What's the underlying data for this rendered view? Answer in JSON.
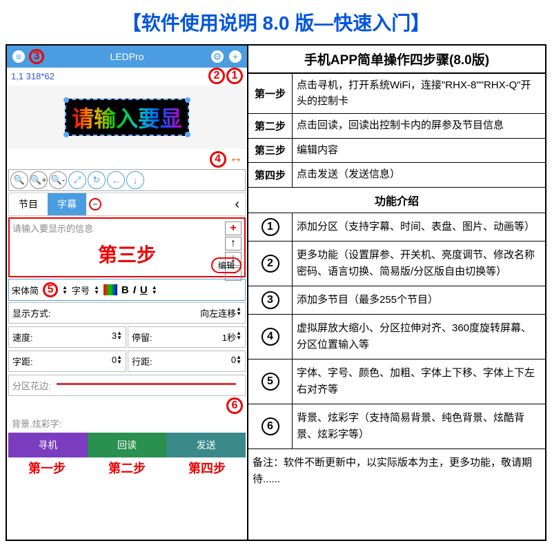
{
  "page_title": "【软件使用说明 8.0 版—快速入门】",
  "app": {
    "title": "LEDPro",
    "dimensions": "1,1 318*62",
    "preview_text": "请输入要显",
    "tabs": {
      "program": "节目",
      "subtitle": "字幕"
    },
    "message_placeholder": "请输入要显示的信息",
    "step3_overlay": "第三步",
    "edit_btn": "编辑",
    "font": {
      "name": "宋体简",
      "size_label": "字号"
    },
    "format": {
      "bold": "B",
      "italic": "I",
      "underline": "U"
    },
    "settings": {
      "display_mode_label": "显示方式:",
      "display_mode_value": "向左连移",
      "speed_label": "速度:",
      "speed_value": "3",
      "stay_label": "停留:",
      "stay_value": "1秒",
      "char_space_label": "字距:",
      "char_space_value": "0",
      "line_space_label": "行距:",
      "line_space_value": "0",
      "border_label": "分区花边:",
      "bg_label": "背景.炫彩字:"
    },
    "bottom_buttons": {
      "search": "寻机",
      "readback": "回读",
      "send": "发送"
    },
    "step_labels": {
      "s1": "第一步",
      "s2": "第二步",
      "s4": "第四步"
    },
    "annotations": {
      "n1": "1",
      "n2": "2",
      "n3": "3",
      "n4": "4",
      "n5": "5",
      "n6": "6"
    }
  },
  "info": {
    "title": "手机APP简单操作四步骤(8.0版)",
    "steps": [
      {
        "label": "第一步",
        "desc": "点击寻机，打开系统WiFi，连接\"RHX-8\"\"RHX-Q\"开头的控制卡"
      },
      {
        "label": "第二步",
        "desc": "点击回读，回读出控制卡内的屏参及节目信息"
      },
      {
        "label": "第三步",
        "desc": "编辑内容"
      },
      {
        "label": "第四步",
        "desc": "点击发送（发送信息）"
      }
    ],
    "features_title": "功能介绍",
    "features": [
      {
        "num": "1",
        "desc": "添加分区（支持字幕、时间、表盘、图片、动画等）"
      },
      {
        "num": "2",
        "desc": "更多功能（设置屏参、开关机、亮度调节、修改名称密码、语言切换、简易版/分区版自由切换等）"
      },
      {
        "num": "3",
        "desc": "添加多节目（最多255个节目）"
      },
      {
        "num": "4",
        "desc": "虚拟屏放大缩小、分区拉伸对齐、360度旋转屏幕、分区位置输入等"
      },
      {
        "num": "5",
        "desc": "字体、字号、颜色、加粗、字体上下移、字体上下左右对齐等"
      },
      {
        "num": "6",
        "desc": "背景、炫彩字（支持简易背景、纯色背景、炫酷背景、炫彩字等）"
      }
    ],
    "note": "备注：软件不断更新中，以实际版本为主，更多功能，敬请期待......"
  },
  "colors": {
    "accent_blue": "#4a9de0",
    "annotation_red": "#e00",
    "title_blue": "#0055dd"
  }
}
